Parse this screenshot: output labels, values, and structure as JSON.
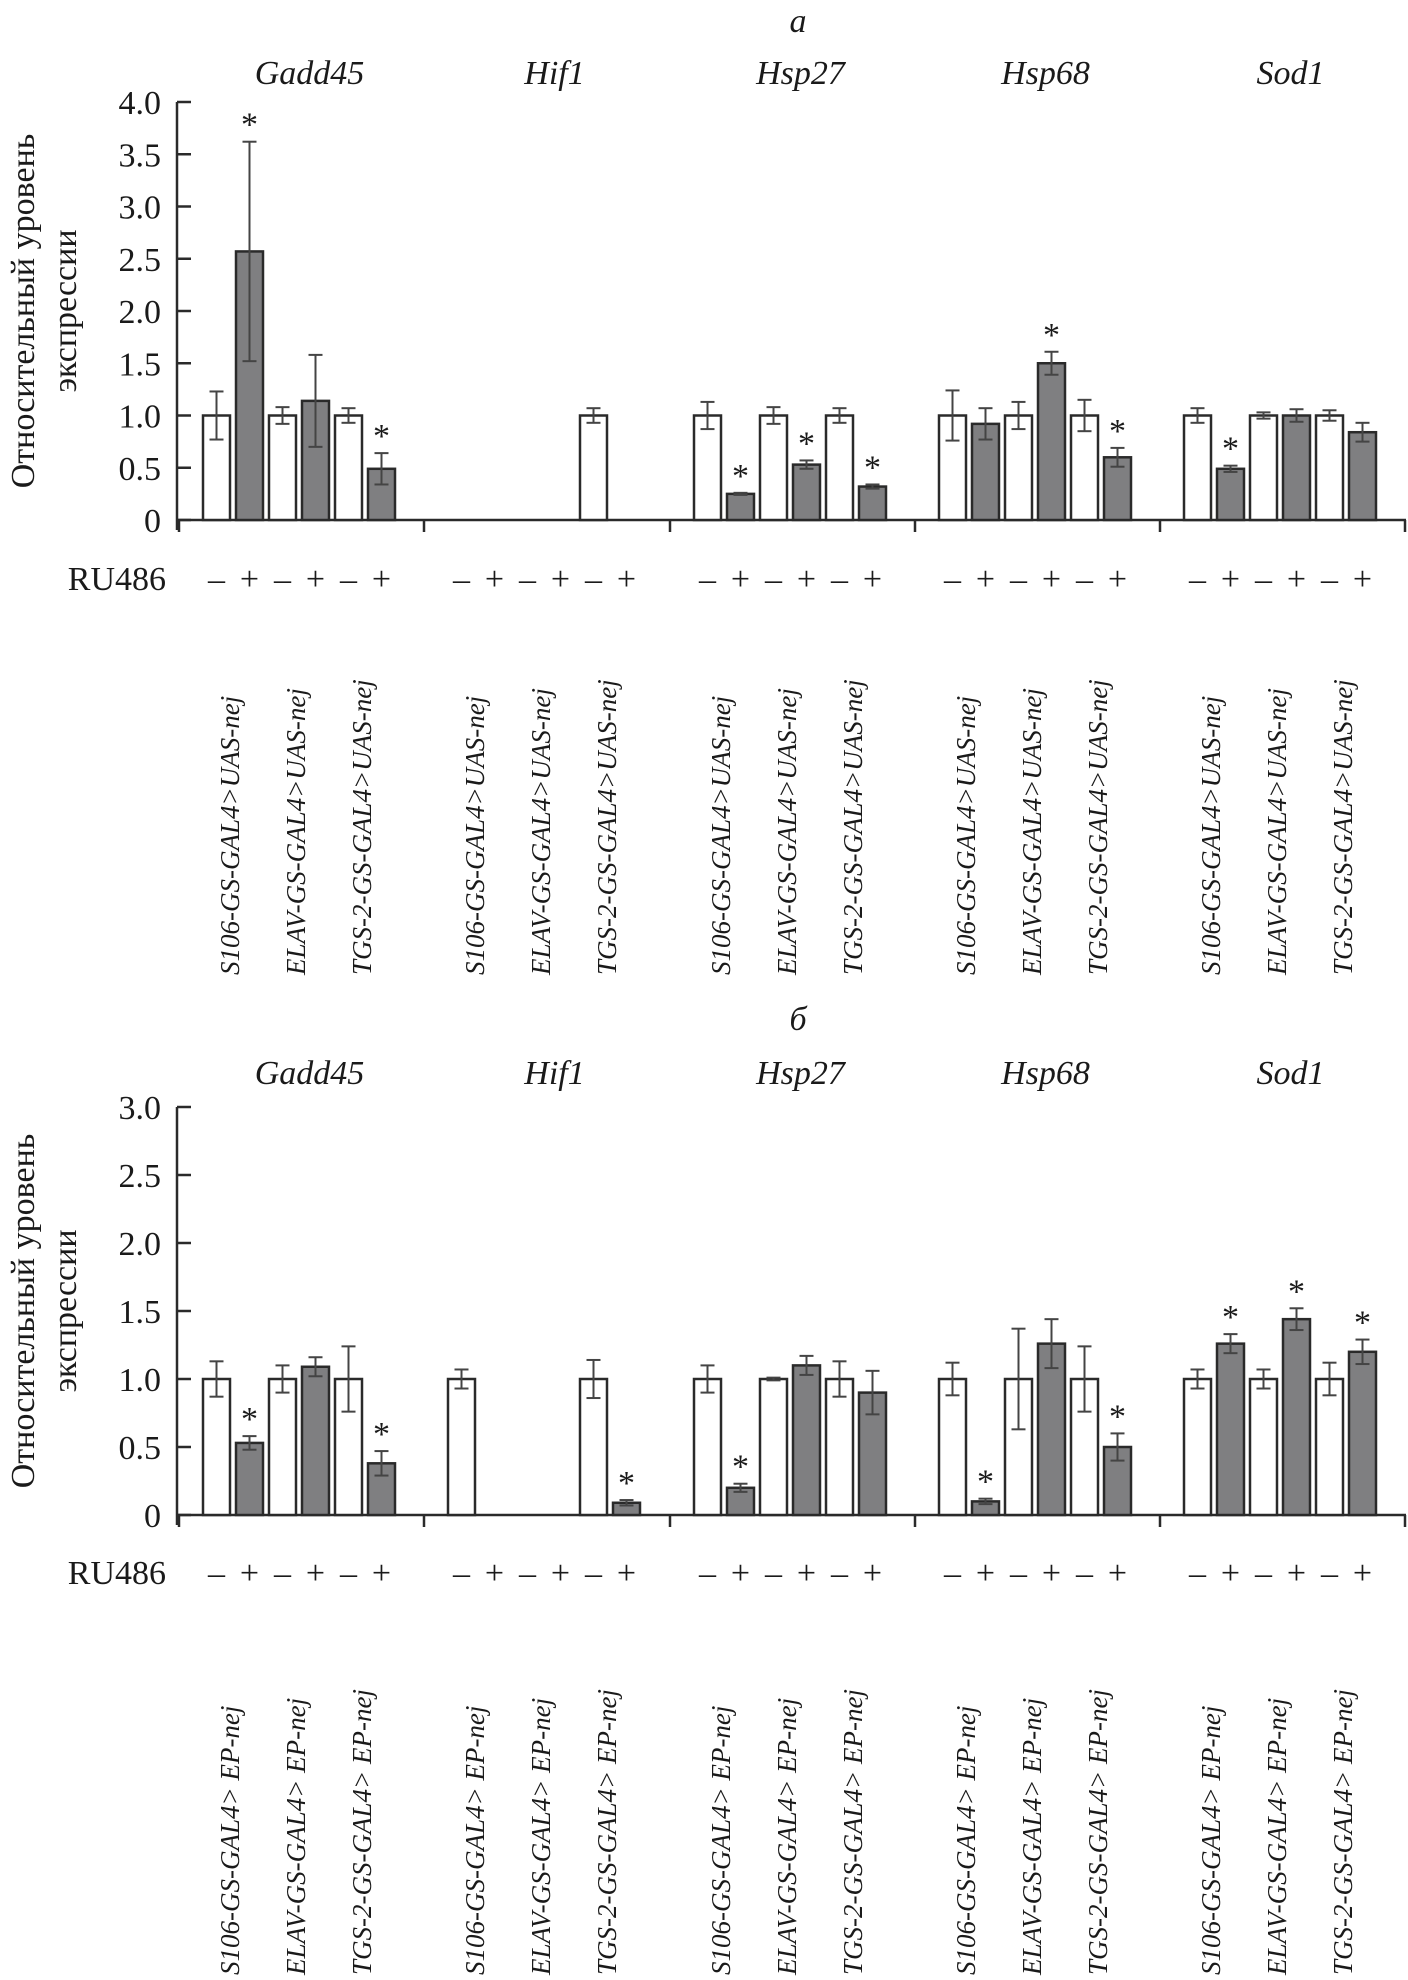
{
  "figure": {
    "treatment_label": "RU486",
    "ylabel_line1": "Относительный уровень",
    "ylabel_line2": "экспрессии",
    "colors": {
      "control": "#ffffff",
      "treated": "#7f7f81",
      "stroke": "#2a2a2a",
      "errorbar": "#444444"
    }
  },
  "chart_data": [
    {
      "type": "bar",
      "panel_label": "а",
      "ylabel": "Относительный уровень экспрессии",
      "ylim": [
        0,
        4.0
      ],
      "yticks": [
        "0",
        "0.5",
        "1.0",
        "1.5",
        "2.0",
        "2.5",
        "3.0",
        "3.5",
        "4.0"
      ],
      "grid": false,
      "genes": [
        "Gadd45",
        "Hif1",
        "Hsp27",
        "Hsp68",
        "Sod1"
      ],
      "lines": [
        "S106-GS-GAL4>UAS-nej",
        "ELAV-GS-GAL4>UAS-nej",
        "TGS-2-GS-GAL4>UAS-nej"
      ],
      "ru486": [
        "–",
        "+",
        "–",
        "+",
        "–",
        "+"
      ],
      "groups": [
        {
          "gene": "Gadd45",
          "bars": [
            {
              "ru486": "-",
              "value": 1.0,
              "err": 0.23,
              "sig": false
            },
            {
              "ru486": "+",
              "value": 2.57,
              "err": 1.05,
              "sig": true
            },
            {
              "ru486": "-",
              "value": 1.0,
              "err": 0.08,
              "sig": false
            },
            {
              "ru486": "+",
              "value": 1.14,
              "err": 0.44,
              "sig": false
            },
            {
              "ru486": "-",
              "value": 1.0,
              "err": 0.07,
              "sig": false
            },
            {
              "ru486": "+",
              "value": 0.49,
              "err": 0.15,
              "sig": true
            }
          ]
        },
        {
          "gene": "Hif1",
          "bars": [
            null,
            null,
            null,
            null,
            {
              "ru486": "-",
              "value": 1.0,
              "err": 0.07,
              "sig": false
            },
            null
          ]
        },
        {
          "gene": "Hsp27",
          "bars": [
            {
              "ru486": "-",
              "value": 1.0,
              "err": 0.13,
              "sig": false
            },
            {
              "ru486": "+",
              "value": 0.25,
              "err": 0.01,
              "sig": true
            },
            {
              "ru486": "-",
              "value": 1.0,
              "err": 0.08,
              "sig": false
            },
            {
              "ru486": "+",
              "value": 0.53,
              "err": 0.04,
              "sig": true
            },
            {
              "ru486": "-",
              "value": 1.0,
              "err": 0.07,
              "sig": false
            },
            {
              "ru486": "+",
              "value": 0.32,
              "err": 0.02,
              "sig": true
            }
          ]
        },
        {
          "gene": "Hsp68",
          "bars": [
            {
              "ru486": "-",
              "value": 1.0,
              "err": 0.24,
              "sig": false
            },
            {
              "ru486": "+",
              "value": 0.92,
              "err": 0.15,
              "sig": false
            },
            {
              "ru486": "-",
              "value": 1.0,
              "err": 0.13,
              "sig": false
            },
            {
              "ru486": "+",
              "value": 1.5,
              "err": 0.11,
              "sig": true
            },
            {
              "ru486": "-",
              "value": 1.0,
              "err": 0.15,
              "sig": false
            },
            {
              "ru486": "+",
              "value": 0.6,
              "err": 0.09,
              "sig": true
            }
          ]
        },
        {
          "gene": "Sod1",
          "bars": [
            {
              "ru486": "-",
              "value": 1.0,
              "err": 0.07,
              "sig": false
            },
            {
              "ru486": "+",
              "value": 0.49,
              "err": 0.03,
              "sig": true
            },
            {
              "ru486": "-",
              "value": 1.0,
              "err": 0.03,
              "sig": false
            },
            {
              "ru486": "+",
              "value": 1.0,
              "err": 0.06,
              "sig": false
            },
            {
              "ru486": "-",
              "value": 1.0,
              "err": 0.05,
              "sig": false
            },
            {
              "ru486": "+",
              "value": 0.84,
              "err": 0.09,
              "sig": false
            }
          ]
        }
      ]
    },
    {
      "type": "bar",
      "panel_label": "б",
      "ylabel": "Относительный уровень экспрессии",
      "ylim": [
        0,
        3.0
      ],
      "yticks": [
        "0",
        "0.5",
        "1.0",
        "1.5",
        "2.0",
        "2.5",
        "3.0"
      ],
      "grid": false,
      "genes": [
        "Gadd45",
        "Hif1",
        "Hsp27",
        "Hsp68",
        "Sod1"
      ],
      "lines": [
        "S106-GS-GAL4> EP-nej",
        "ELAV-GS-GAL4> EP-nej",
        "TGS-2-GS-GAL4> EP-nej"
      ],
      "ru486": [
        "–",
        "+",
        "–",
        "+",
        "–",
        "+"
      ],
      "groups": [
        {
          "gene": "Gadd45",
          "bars": [
            {
              "ru486": "-",
              "value": 1.0,
              "err": 0.13,
              "sig": false
            },
            {
              "ru486": "+",
              "value": 0.53,
              "err": 0.05,
              "sig": true
            },
            {
              "ru486": "-",
              "value": 1.0,
              "err": 0.1,
              "sig": false
            },
            {
              "ru486": "+",
              "value": 1.09,
              "err": 0.07,
              "sig": false
            },
            {
              "ru486": "-",
              "value": 1.0,
              "err": 0.24,
              "sig": false
            },
            {
              "ru486": "+",
              "value": 0.38,
              "err": 0.09,
              "sig": true
            }
          ]
        },
        {
          "gene": "Hif1",
          "bars": [
            {
              "ru486": "-",
              "value": 1.0,
              "err": 0.07,
              "sig": false
            },
            null,
            null,
            null,
            {
              "ru486": "-",
              "value": 1.0,
              "err": 0.14,
              "sig": false
            },
            {
              "ru486": "+",
              "value": 0.09,
              "err": 0.02,
              "sig": true
            }
          ]
        },
        {
          "gene": "Hsp27",
          "bars": [
            {
              "ru486": "-",
              "value": 1.0,
              "err": 0.1,
              "sig": false
            },
            {
              "ru486": "+",
              "value": 0.2,
              "err": 0.03,
              "sig": true
            },
            {
              "ru486": "-",
              "value": 1.0,
              "err": 0.01,
              "sig": false
            },
            {
              "ru486": "+",
              "value": 1.1,
              "err": 0.07,
              "sig": false
            },
            {
              "ru486": "-",
              "value": 1.0,
              "err": 0.13,
              "sig": false
            },
            {
              "ru486": "+",
              "value": 0.9,
              "err": 0.16,
              "sig": false
            }
          ]
        },
        {
          "gene": "Hsp68",
          "bars": [
            {
              "ru486": "-",
              "value": 1.0,
              "err": 0.12,
              "sig": false
            },
            {
              "ru486": "+",
              "value": 0.1,
              "err": 0.02,
              "sig": true
            },
            {
              "ru486": "-",
              "value": 1.0,
              "err": 0.37,
              "sig": false
            },
            {
              "ru486": "+",
              "value": 1.26,
              "err": 0.18,
              "sig": false
            },
            {
              "ru486": "-",
              "value": 1.0,
              "err": 0.24,
              "sig": false
            },
            {
              "ru486": "+",
              "value": 0.5,
              "err": 0.1,
              "sig": true
            }
          ]
        },
        {
          "gene": "Sod1",
          "bars": [
            {
              "ru486": "-",
              "value": 1.0,
              "err": 0.07,
              "sig": false
            },
            {
              "ru486": "+",
              "value": 1.26,
              "err": 0.07,
              "sig": true
            },
            {
              "ru486": "-",
              "value": 1.0,
              "err": 0.07,
              "sig": false
            },
            {
              "ru486": "+",
              "value": 1.44,
              "err": 0.08,
              "sig": true
            },
            {
              "ru486": "-",
              "value": 1.0,
              "err": 0.12,
              "sig": false
            },
            {
              "ru486": "+",
              "value": 1.2,
              "err": 0.09,
              "sig": true
            }
          ]
        }
      ]
    }
  ]
}
